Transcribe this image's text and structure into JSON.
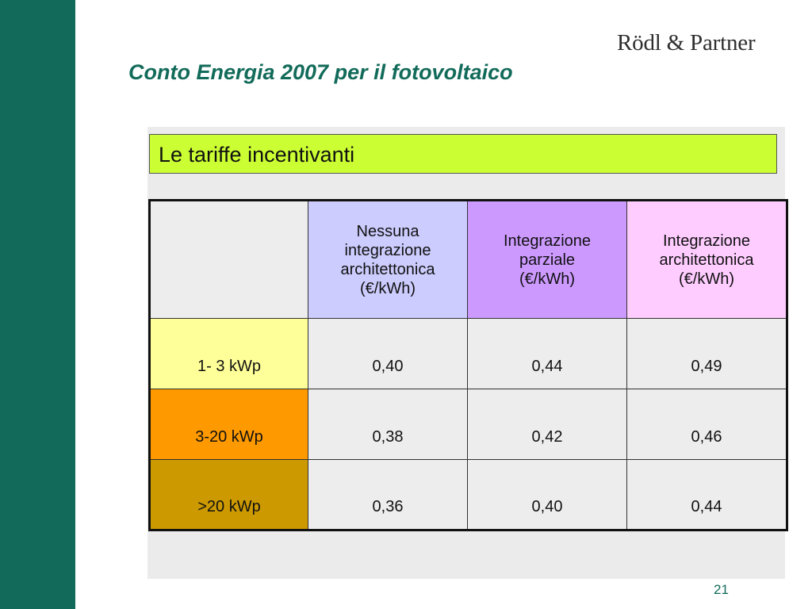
{
  "logo": {
    "text": "Rödl & Partner"
  },
  "slide": {
    "title": "Conto Energia 2007 per il fotovoltaico",
    "subtitle": "Le tariffe incentivanti",
    "page_number": "21"
  },
  "table": {
    "headers": [
      {
        "lines": [
          "Nessuna",
          "integrazione",
          "architettonica",
          "(€/kWh)"
        ],
        "color": "#ccccff"
      },
      {
        "lines": [
          "Integrazione",
          "parziale",
          "(€/kWh)"
        ],
        "color": "#cc99ff"
      },
      {
        "lines": [
          "Integrazione",
          "architettonica",
          "(€/kWh)"
        ],
        "color": "#ffccff"
      }
    ],
    "rows": [
      {
        "label": "1- 3 kWp",
        "color": "#ffff99",
        "values": [
          "0,40",
          "0,44",
          "0,49"
        ]
      },
      {
        "label": "3-20 kWp",
        "color": "#ff9900",
        "values": [
          "0,38",
          "0,42",
          "0,46"
        ]
      },
      {
        "label": ">20 kWp",
        "color": "#cc9900",
        "values": [
          "0,36",
          "0,40",
          "0,44"
        ]
      }
    ]
  },
  "colors": {
    "sidebar": "#126b5a",
    "title": "#126b5a",
    "subtitle_box": "#ccff33",
    "panel": "#ebebeb"
  }
}
